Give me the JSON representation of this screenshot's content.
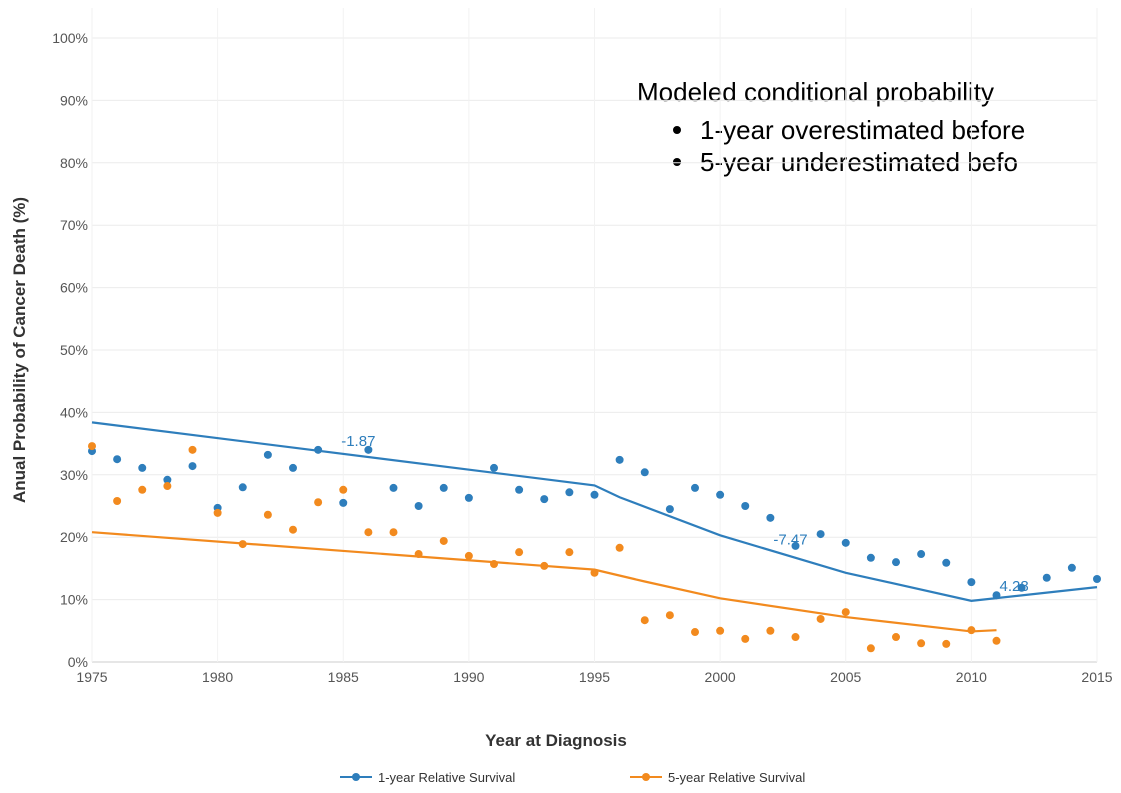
{
  "chart_data": {
    "type": "scatter",
    "y_label": "Anual Probability of Cancer Death (%)",
    "x_label": "Year at Diagnosis",
    "x": [
      1975,
      1976,
      1977,
      1978,
      1979,
      1980,
      1981,
      1982,
      1983,
      1984,
      1985,
      1986,
      1987,
      1988,
      1989,
      1990,
      1991,
      1992,
      1993,
      1994,
      1995,
      1996,
      1997,
      1998,
      1999,
      2000,
      2001,
      2002,
      2003,
      2004,
      2005,
      2006,
      2007,
      2008,
      2009,
      2010,
      2011,
      2012,
      2013,
      2014,
      2015
    ],
    "series": [
      {
        "name": "1-year Relative Survival",
        "color": "#2e7ebc",
        "values": [
          33.8,
          32.5,
          31.1,
          29.2,
          31.4,
          24.7,
          28.0,
          33.2,
          31.1,
          34.0,
          25.5,
          34.0,
          27.9,
          25.0,
          27.9,
          26.3,
          31.1,
          27.6,
          26.1,
          27.2,
          26.8,
          32.4,
          30.4,
          24.5,
          27.9,
          26.8,
          25.0,
          23.1,
          18.6,
          20.5,
          19.1,
          16.7,
          16.0,
          17.3,
          15.9,
          12.8,
          10.7,
          11.9,
          13.5,
          15.1,
          13.3
        ],
        "fit": {
          "x": [
            1975,
            1995,
            1996,
            2000,
            2005,
            2010,
            2015
          ],
          "values": [
            38.4,
            28.3,
            26.4,
            20.3,
            14.3,
            9.8,
            12.0
          ]
        }
      },
      {
        "name": "5-year Relative Survival",
        "color": "#f28a1e",
        "values": [
          34.6,
          25.8,
          27.6,
          28.2,
          34.0,
          23.9,
          18.9,
          23.6,
          21.2,
          25.6,
          27.6,
          20.8,
          20.8,
          17.3,
          19.4,
          17.0,
          15.7,
          17.6,
          15.4,
          17.6,
          14.3,
          18.3,
          6.7,
          7.5,
          4.8,
          5.0,
          3.7,
          5.0,
          4.0,
          6.9,
          8.0,
          2.2,
          4.0,
          3.0,
          2.9,
          5.1,
          3.4,
          null,
          null,
          null,
          null
        ],
        "fit": {
          "x": [
            1975,
            1995,
            1997,
            2000,
            2005,
            2010,
            2011
          ],
          "values": [
            20.8,
            14.8,
            12.9,
            10.2,
            7.2,
            4.9,
            5.1
          ]
        }
      }
    ],
    "annotations": [
      {
        "text": "-1.87",
        "x": 1985.6,
        "y": 35.4
      },
      {
        "text": "-7.47",
        "x": 2002.8,
        "y": 19.6
      },
      {
        "text": "4.28",
        "x": 2011.7,
        "y": 12.2
      }
    ],
    "note": {
      "title": "Modeled conditional probability",
      "bullets": [
        "1-year overestimated before",
        "5-year underestimated befo"
      ]
    },
    "xlim": [
      1975,
      2015
    ],
    "xticks": [
      1975,
      1980,
      1985,
      1990,
      1995,
      2000,
      2005,
      2010,
      2015
    ],
    "ylim": [
      0,
      100
    ],
    "yticks": [
      {
        "value": 0,
        "label": "0%"
      },
      {
        "value": 10,
        "label": "10%"
      },
      {
        "value": 20,
        "label": "20%"
      },
      {
        "value": 30,
        "label": "30%"
      },
      {
        "value": 40,
        "label": "40%"
      },
      {
        "value": 50,
        "label": "50%"
      },
      {
        "value": 60,
        "label": "60%"
      },
      {
        "value": 70,
        "label": "70%"
      },
      {
        "value": 80,
        "label": "80%"
      },
      {
        "value": 90,
        "label": "90%"
      },
      {
        "value": 100,
        "label": "100%"
      }
    ],
    "grid": true
  }
}
